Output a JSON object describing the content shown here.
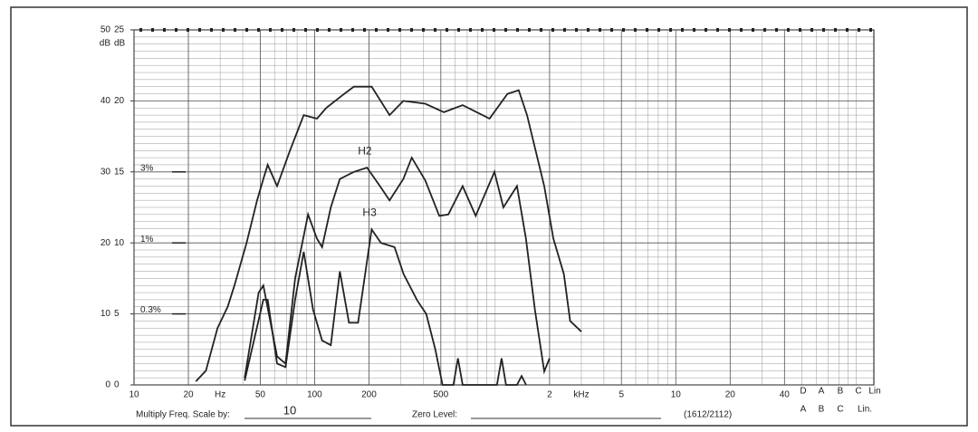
{
  "chart_data": {
    "type": "line",
    "xlog": true,
    "xlim": [
      10,
      125000
    ],
    "xticks": [
      10,
      20,
      50,
      100,
      200,
      500,
      {
        "value": 2000,
        "label": "2"
      },
      {
        "value": 5000,
        "label": "5"
      },
      {
        "value": 10000,
        "label": "10"
      },
      {
        "value": 20000,
        "label": "20"
      },
      {
        "value": 40000,
        "label": "40"
      }
    ],
    "ylim": [
      0,
      50
    ],
    "yticks": [
      0,
      10,
      20,
      30,
      40,
      50
    ],
    "y2lim": [
      0,
      25
    ],
    "y2ticks": [
      0,
      5,
      10,
      15,
      20,
      25
    ],
    "y_unit": "dB",
    "y2_unit": "dB",
    "percent_ticks": [
      {
        "value": 30,
        "label": "3%"
      },
      {
        "value": 20,
        "label": "1%"
      },
      {
        "value": 10,
        "label": "0.3%"
      }
    ],
    "x_unit_annotations": [
      {
        "value": 30,
        "label": "Hz"
      },
      {
        "value": 3000,
        "label": "kHz"
      }
    ],
    "grid": true,
    "series": [
      {
        "color": "#222222",
        "x": [
          22,
          25,
          29,
          33,
          36,
          42,
          48,
          52,
          55,
          62,
          73,
          87,
          103,
          116,
          146,
          165,
          207,
          260,
          310,
          410,
          520,
          660,
          930,
          1170,
          1350,
          1500,
          1870,
          2100,
          2400,
          2600,
          3000
        ],
        "values": [
          0.5,
          2,
          8,
          11,
          14,
          20,
          26,
          29,
          31,
          28,
          33,
          38,
          37.5,
          39,
          41,
          42,
          42,
          38,
          40,
          39.6,
          38.4,
          39.4,
          37.5,
          41,
          41.5,
          38,
          28,
          20.6,
          15.6,
          9,
          7.5
        ]
      },
      {
        "name": "H2",
        "color": "#222222",
        "x": [
          41,
          49,
          52,
          62,
          69,
          78,
          92,
          103,
          110,
          123,
          138,
          165,
          195,
          230,
          260,
          310,
          345,
          410,
          490,
          550,
          660,
          780,
          990,
          1110,
          1320,
          1480,
          1660,
          1870,
          2000
        ],
        "values": [
          1,
          13,
          14,
          4,
          3,
          15,
          24,
          20.6,
          19.4,
          25,
          29,
          30,
          30.6,
          28,
          26,
          29,
          32,
          28.8,
          23.8,
          24,
          28,
          23.8,
          30,
          25,
          28,
          20.6,
          10.6,
          1.9,
          3.75
        ]
      },
      {
        "name": "H3",
        "color": "#222222",
        "x": [
          41,
          52,
          55,
          62,
          69,
          78,
          87,
          98,
          110,
          123,
          138,
          155,
          174,
          207,
          233,
          277,
          311,
          370,
          415,
          466,
          511,
          587,
          622,
          660,
          1023,
          1085,
          1148,
          1320,
          1400,
          1483
        ],
        "values": [
          0.6,
          12,
          12,
          3,
          2.5,
          12,
          18.75,
          10.6,
          6.25,
          5.6,
          16,
          8.75,
          8.75,
          21.9,
          20,
          19.4,
          15.6,
          11.9,
          10,
          5,
          0,
          0,
          3.75,
          0,
          0,
          3.75,
          0,
          0,
          1.25,
          0
        ]
      }
    ],
    "right_labels": [
      "D",
      "A",
      "B",
      "C",
      "Lin"
    ],
    "bottom_right_labels": [
      "A",
      "B",
      "C",
      "Lin."
    ],
    "footer": {
      "multiply_label": "Multiply Freq. Scale by:",
      "multiply_value": "10",
      "zero_label": "Zero Level:",
      "code": "(1612/2112)"
    }
  }
}
